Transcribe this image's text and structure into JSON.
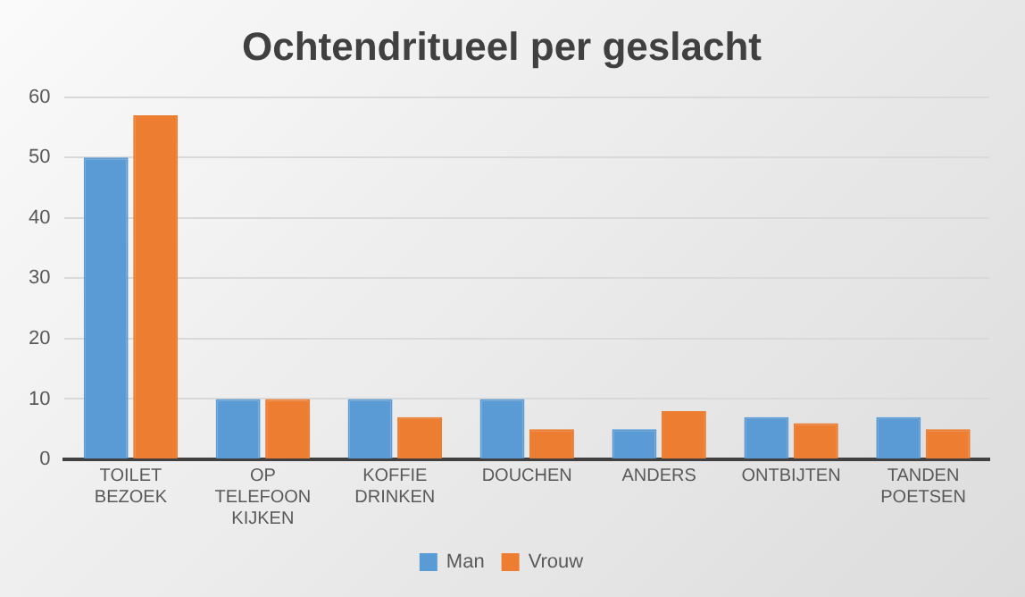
{
  "chart_data": {
    "type": "bar",
    "title": "Ochtendritueel per geslacht",
    "categories": [
      "TOILET BEZOEK",
      "OP TELEFOON KIJKEN",
      "KOFFIE DRINKEN",
      "DOUCHEN",
      "ANDERS",
      "ONTBIJTEN",
      "TANDEN POETSEN"
    ],
    "series": [
      {
        "name": "Man",
        "color": "#5b9bd5",
        "values": [
          50,
          10,
          10,
          10,
          5,
          7,
          7
        ]
      },
      {
        "name": "Vrouw",
        "color": "#ed7d31",
        "values": [
          57,
          10,
          7,
          5,
          8,
          6,
          5
        ]
      }
    ],
    "ylim": [
      0,
      60
    ],
    "yticks": [
      0,
      10,
      20,
      30,
      40,
      50,
      60
    ],
    "grid": "y",
    "legend": "bottom"
  }
}
